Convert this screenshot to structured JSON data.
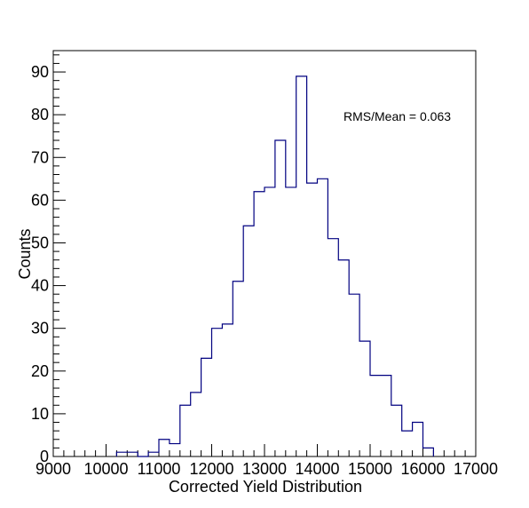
{
  "chart_data": {
    "type": "histogram",
    "title": "",
    "xlabel": "Corrected Yield Distribution",
    "ylabel": "Counts",
    "xlim": [
      9000,
      17000
    ],
    "ylim": [
      0,
      95
    ],
    "x_major_ticks": [
      9000,
      10000,
      11000,
      12000,
      13000,
      14000,
      15000,
      16000,
      17000
    ],
    "y_major_ticks": [
      0,
      10,
      20,
      30,
      40,
      50,
      60,
      70,
      80,
      90
    ],
    "annotation": "RMS/Mean = 0.063",
    "grid": false,
    "legend": "none",
    "line_color": "#000080",
    "bin_edges": [
      10200,
      10400,
      10600,
      10800,
      11000,
      11200,
      11400,
      11600,
      11800,
      12000,
      12200,
      12400,
      12600,
      12800,
      13000,
      13200,
      13400,
      13600,
      13800,
      14000,
      14200,
      14400,
      14600,
      14800,
      15000,
      15200,
      15400,
      15600,
      15800,
      16000
    ],
    "counts": [
      1,
      1,
      0,
      1,
      4,
      3,
      12,
      15,
      23,
      30,
      31,
      41,
      54,
      62,
      63,
      74,
      63,
      89,
      64,
      65,
      51,
      46,
      38,
      27,
      19,
      19,
      12,
      6,
      8,
      2
    ]
  }
}
